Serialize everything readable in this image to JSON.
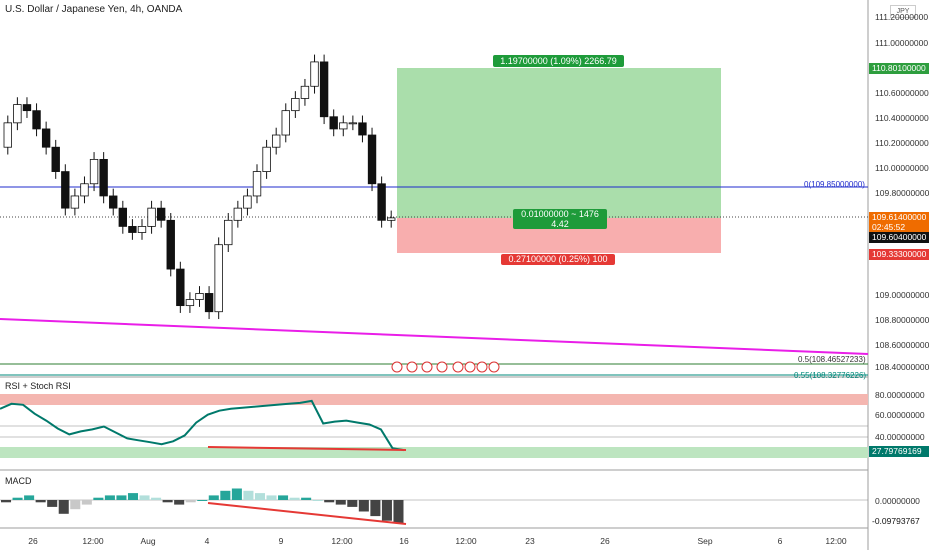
{
  "chart": {
    "title": "U.S. Dollar / Japanese Yen, 4h, OANDA",
    "currency_badge": "JPY",
    "rsi_label": "RSI + Stoch RSI",
    "macd_label": "MACD"
  },
  "chart_data": [
    {
      "type": "candlestick",
      "title": "U.S. Dollar / Japanese Yen, 4h, OANDA",
      "ylim": [
        108.3,
        111.3
      ],
      "y_ticks": [
        "111.20000000",
        "111.00000000",
        "110.60000000",
        "110.40000000",
        "110.20000000",
        "110.00000000",
        "109.80000000",
        "109.00000000",
        "108.80000000",
        "108.60000000",
        "108.40000000"
      ],
      "x_ticks": [
        "26",
        "12:00",
        "Aug",
        "4",
        "9",
        "12:00",
        "16",
        "12:00",
        "23",
        "26",
        "Sep",
        "6",
        "12:00"
      ],
      "candles_close": [
        110.4,
        110.55,
        110.5,
        110.35,
        110.2,
        110.0,
        109.7,
        109.8,
        109.9,
        110.1,
        109.8,
        109.7,
        109.55,
        109.5,
        109.55,
        109.7,
        109.6,
        109.2,
        108.9,
        108.95,
        109.0,
        108.85,
        109.4,
        109.6,
        109.7,
        109.8,
        110.0,
        110.2,
        110.3,
        110.5,
        110.6,
        110.7,
        110.9,
        110.45,
        110.35,
        110.4,
        110.4,
        110.3,
        109.9,
        109.6,
        109.62
      ],
      "price_tags": {
        "target": "110.80100000",
        "current": "109.61400000",
        "countdown": "02:45:52",
        "entry": "109.60400000",
        "stop": "109.33300000"
      },
      "horizontal_line_label": "0(109.85000000)",
      "fib_labels": [
        "0.5(108.46527233)",
        "0.55(108.32776226)"
      ],
      "position": {
        "target_label": "1.19700000 (1.09%) 2266.79",
        "mid_label_1": "0.01000000 ~ 1476",
        "mid_label_2": "4.42",
        "stop_label": "0.27100000 (0.25%) 100"
      },
      "colors": {
        "profit": "#4caf50",
        "loss": "#f44336",
        "trendline": "#e91ee8",
        "hline": "#1f2bcc"
      }
    },
    {
      "type": "line",
      "title": "RSI + Stoch RSI",
      "y_ticks": [
        "80.00000000",
        "60.00000000",
        "40.00000000"
      ],
      "last_value": "27.79769169",
      "series_values": [
        70,
        75,
        74,
        65,
        58,
        50,
        44,
        47,
        49,
        52,
        46,
        40,
        38,
        36,
        34,
        37,
        43,
        56,
        64,
        68,
        70,
        71,
        72,
        73,
        74,
        75,
        76,
        78,
        55,
        57,
        58,
        56,
        54,
        49,
        30,
        28
      ]
    },
    {
      "type": "bar",
      "title": "MACD",
      "y_ticks": [
        "0.00000000"
      ],
      "last_value": "-0.09793767",
      "histogram": [
        -0.01,
        0.01,
        0.02,
        -0.01,
        -0.03,
        -0.06,
        -0.04,
        -0.02,
        0.01,
        0.02,
        0.02,
        0.03,
        0.02,
        0.01,
        -0.01,
        -0.02,
        -0.01,
        0.0,
        0.02,
        0.04,
        0.05,
        0.04,
        0.03,
        0.02,
        0.02,
        0.01,
        0.01,
        0.0,
        -0.01,
        -0.02,
        -0.03,
        -0.05,
        -0.07,
        -0.09,
        -0.1
      ]
    }
  ]
}
